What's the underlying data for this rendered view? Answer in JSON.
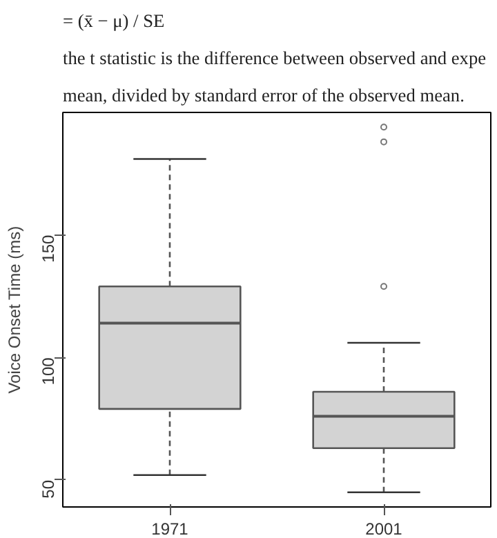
{
  "chart_data": {
    "type": "box",
    "ylabel": "Voice Onset Time (ms)",
    "annotations": [
      "= (x̄ − μ) / SE",
      "the t statistic is the difference between observed and expe",
      "mean, divided by standard error of the observed mean."
    ],
    "categories": [
      "1971",
      "2001"
    ],
    "boxes": [
      {
        "low": 52,
        "q1": 79,
        "median": 114,
        "q3": 129,
        "high": 181
      },
      {
        "low": 45,
        "q1": 63,
        "median": 76,
        "q3": 86,
        "high": 106,
        "outliers": [
          194,
          188,
          129
        ]
      }
    ],
    "color": "#d3d3d3",
    "ylim": [
      39,
      200
    ],
    "yticks": [
      50,
      100,
      150
    ],
    "grid": false
  }
}
